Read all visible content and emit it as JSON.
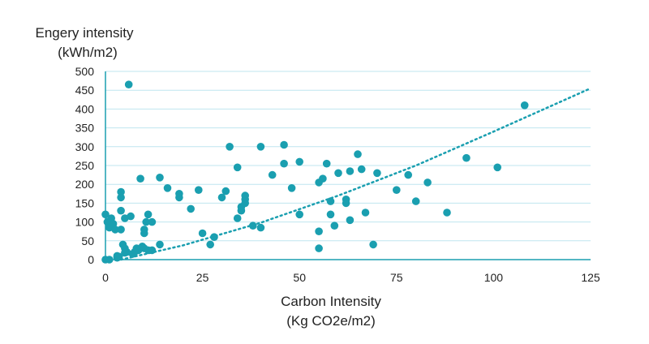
{
  "chart_data": {
    "type": "scatter",
    "title": "",
    "ylabel_lines": [
      "Engery intensity",
      "(kWh/m2)"
    ],
    "xlabel_lines": [
      "Carbon Intensity",
      "(Kg CO2e/m2)"
    ],
    "xlim": [
      0,
      125
    ],
    "ylim": [
      0,
      500
    ],
    "xticks": [
      0,
      25,
      50,
      75,
      100,
      125
    ],
    "yticks": [
      0,
      50,
      100,
      150,
      200,
      250,
      300,
      350,
      400,
      450,
      500
    ],
    "xtick_labels": [
      "0",
      "25",
      "50",
      "75",
      "100",
      "125"
    ],
    "ytick_labels": [
      "0",
      "50",
      "100",
      "150",
      "200",
      "250",
      "300",
      "350",
      "400",
      "450",
      "500"
    ],
    "grid": true,
    "marker_color": "#1a9fb0",
    "grid_color": "#bfe6ef",
    "axis_color": "#1a9fb0",
    "trendline": {
      "type": "power",
      "x": [
        4,
        20,
        40,
        60,
        80,
        100,
        125
      ],
      "y": [
        0,
        38,
        98,
        170,
        250,
        340,
        455
      ]
    },
    "points": {
      "x": [
        0,
        0.5,
        1,
        1.5,
        2,
        1,
        2.5,
        3,
        4,
        4,
        4,
        4,
        4.5,
        5,
        5,
        5.5,
        6,
        6.5,
        7,
        7.5,
        8,
        8.5,
        9,
        9.5,
        10,
        10.5,
        11,
        12,
        12,
        14,
        14,
        16,
        19,
        19,
        22,
        24,
        25,
        27,
        28,
        30,
        31,
        32,
        34,
        34,
        35,
        35,
        36,
        36,
        36,
        38,
        40,
        40,
        43,
        46,
        46,
        48,
        50,
        50,
        55,
        55,
        55,
        56,
        57,
        58,
        58,
        59,
        60,
        62,
        62,
        63,
        63,
        65,
        66,
        67,
        69,
        70,
        75,
        78,
        80,
        83,
        88,
        93,
        101,
        108,
        10,
        10,
        11,
        0,
        3,
        5,
        3.5
      ],
      "y": [
        120,
        100,
        85,
        110,
        95,
        0,
        80,
        10,
        180,
        165,
        130,
        80,
        40,
        30,
        110,
        20,
        465,
        115,
        15,
        20,
        30,
        25,
        215,
        35,
        30,
        100,
        120,
        25,
        100,
        218,
        40,
        190,
        165,
        175,
        135,
        185,
        70,
        40,
        60,
        165,
        182,
        300,
        245,
        110,
        130,
        140,
        160,
        150,
        170,
        90,
        85,
        300,
        225,
        305,
        255,
        190,
        260,
        120,
        30,
        75,
        205,
        215,
        255,
        120,
        155,
        90,
        230,
        150,
        160,
        105,
        235,
        280,
        240,
        125,
        40,
        230,
        185,
        225,
        155,
        205,
        125,
        270,
        245,
        410,
        70,
        80,
        25,
        0,
        5,
        18,
        8
      ]
    }
  }
}
